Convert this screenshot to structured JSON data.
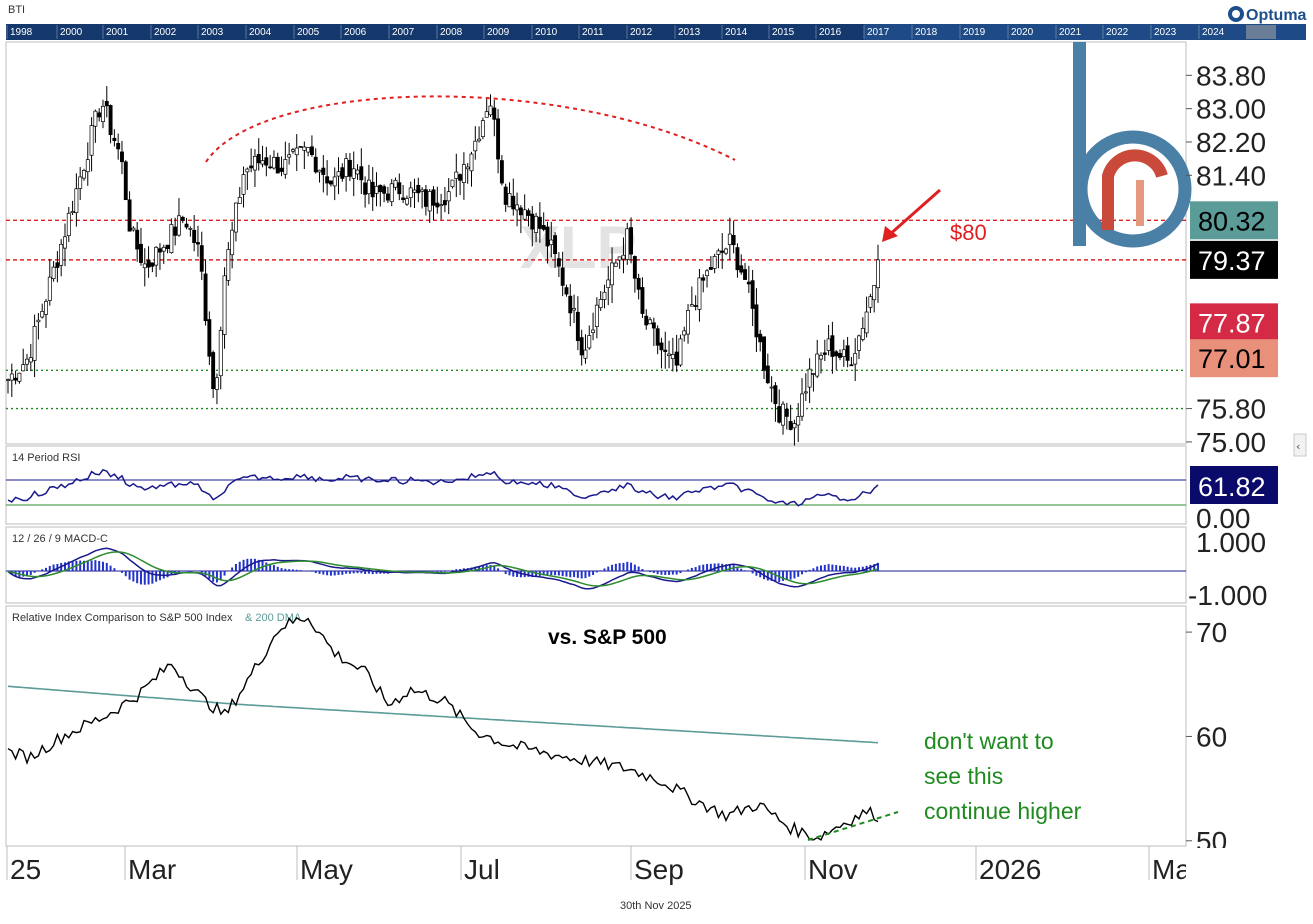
{
  "chart_data": [
    {
      "type": "candlestick",
      "symbol": "BTI",
      "watermark": "XLP",
      "y_ticks": [
        "83.80",
        "83.00",
        "82.20",
        "81.40",
        "75.80",
        "75.00"
      ],
      "ylim": [
        74.95,
        84.6
      ],
      "x_months": [
        "25",
        "Mar",
        "May",
        "Jul",
        "Sep",
        "Nov",
        "2026",
        "Ma"
      ],
      "timeline_years": [
        "1998",
        "2000",
        "2001",
        "2002",
        "2003",
        "2004",
        "2005",
        "2006",
        "2007",
        "2008",
        "2009",
        "2010",
        "2011",
        "2012",
        "2013",
        "2014",
        "2015",
        "2016",
        "2017",
        "2018",
        "2019",
        "2020",
        "2021",
        "2022",
        "2023",
        "2024",
        "2025"
      ],
      "series": [
        {
          "name": "Close",
          "last": "79.37",
          "color": "#000000"
        },
        {
          "name": "MA (red)",
          "last": "77.87",
          "color": "#d42a45"
        },
        {
          "name": "MA (salmon)",
          "last": "77.01",
          "color": "#e8907a"
        },
        {
          "name": "MA (teal)",
          "last": "80.32",
          "color": "#5b9b98"
        }
      ],
      "horizontal_levels": [
        {
          "value": 80.32,
          "style": "red dashed"
        },
        {
          "value": 79.37,
          "style": "red dashed"
        },
        {
          "value": 76.72,
          "style": "green dotted"
        },
        {
          "value": 75.8,
          "style": "green dotted"
        }
      ],
      "annotation": {
        "text": "$80",
        "color": "#e02020"
      },
      "panel_color": "#ffffff"
    },
    {
      "type": "line",
      "title": "14 Period RSI",
      "last": "61.82",
      "y_ticks": [
        "0.00"
      ],
      "color": "#1a1a8c"
    },
    {
      "type": "bar+line",
      "title": "12 / 26 / 9 MACD-C",
      "y_ticks": [
        "1.000",
        "-1.000"
      ],
      "colors": {
        "macd": "#1a1a8c",
        "signal": "#2e8b2e",
        "hist": "#2233cc"
      }
    },
    {
      "type": "line",
      "title": "Relative Index Comparison to S&P 500 Index",
      "title_suffix": "& 200 DMA",
      "label": "vs. S&P 500",
      "y_ticks": [
        "70",
        "60",
        "50"
      ],
      "ylim": [
        49.5,
        72.5
      ],
      "note_lines": [
        "don't want to",
        "see this",
        "continue higher"
      ],
      "colors": {
        "ratio": "#000000",
        "dma": "#5b9b98",
        "note": "#1f8a1f"
      }
    }
  ],
  "footer": {
    "date": "30th Nov 2025"
  },
  "brand": {
    "name": "Optuma"
  }
}
